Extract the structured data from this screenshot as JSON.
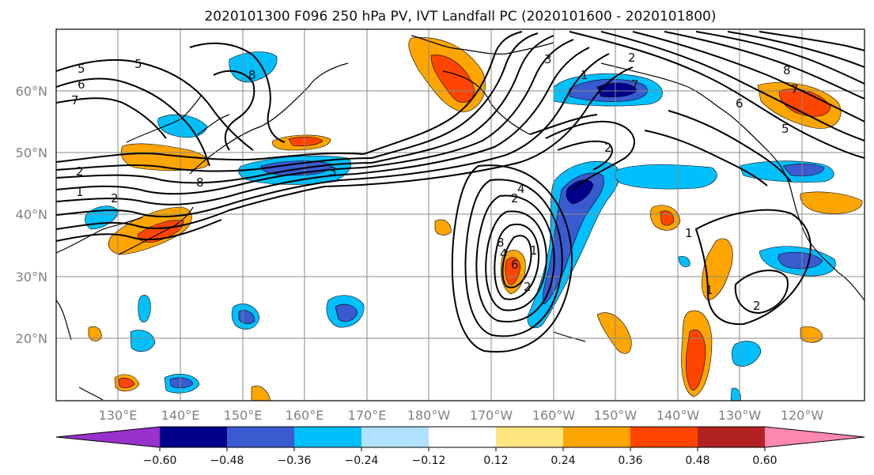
{
  "title": "2020101300 F096 250 hPa PV, IVT Landfall PC (2020101600 - 2020101800)",
  "map": {
    "lat_ticks": [
      "60°N",
      "50°N",
      "40°N",
      "30°N",
      "20°N"
    ],
    "lon_ticks": [
      "130°E",
      "140°E",
      "150°E",
      "160°E",
      "170°E",
      "180°W",
      "170°W",
      "160°W",
      "150°W",
      "140°W",
      "130°W",
      "120°W"
    ],
    "contour_labels": [
      "5",
      "6",
      "7",
      "2",
      "1",
      "2",
      "8",
      "5",
      "8",
      "3",
      "2",
      "4",
      "8",
      "1",
      "2",
      "4",
      "6",
      "7",
      "2",
      "3",
      "8",
      "7",
      "6",
      "5",
      "1",
      "1",
      "2",
      "1",
      "2"
    ]
  },
  "colorbar": {
    "colors": [
      "#9932cc",
      "#00008b",
      "#3a5bcf",
      "#00bfff",
      "#b0e2ff",
      "#ffffff",
      "#ffe680",
      "#ffa500",
      "#ff4500",
      "#b22222",
      "#ff88b0"
    ],
    "tick_labels": [
      "−0.60",
      "−0.48",
      "−0.36",
      "−0.24",
      "−0.12",
      "0.12",
      "0.24",
      "0.36",
      "0.48",
      "0.60"
    ]
  },
  "colors": {
    "contour": "#000000",
    "grid": "#888888",
    "coast": "#000000"
  }
}
